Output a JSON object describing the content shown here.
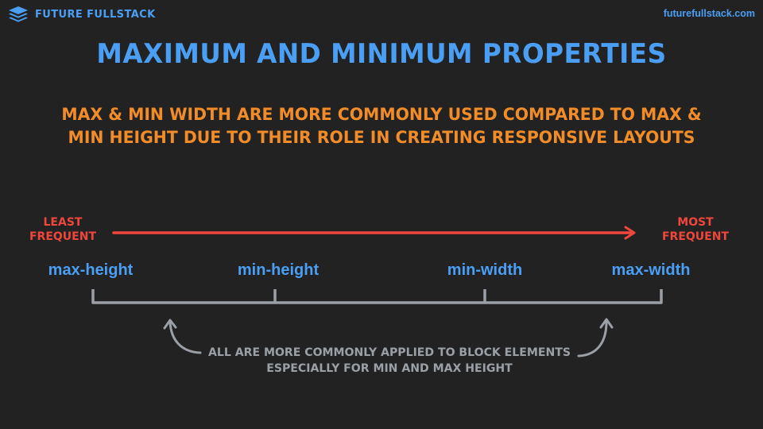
{
  "header": {
    "brand_name": "FUTURE FULLSTACK",
    "brand_icon": "layers-icon",
    "site_url": "futurefullstack.com"
  },
  "title": "Maximum and Minimum Properties",
  "subtitle_lines": [
    "Max & min width are more commonly used compared to max &",
    "min height due to their role in creating responsive layouts"
  ],
  "scale": {
    "left_label_lines": [
      "Least",
      "Frequent"
    ],
    "right_label_lines": [
      "Most",
      "Frequent"
    ],
    "properties": [
      {
        "name": "max-height"
      },
      {
        "name": "min-height"
      },
      {
        "name": "min-width"
      },
      {
        "name": "max-width"
      }
    ]
  },
  "note_lines": [
    "All are more commonly applied to block elements",
    "especially for min and max height"
  ],
  "colors": {
    "background": "#222222",
    "blue": "#4a9ff5",
    "orange": "#f28c28",
    "red": "#f0463c",
    "gray": "#9ba0a6"
  }
}
